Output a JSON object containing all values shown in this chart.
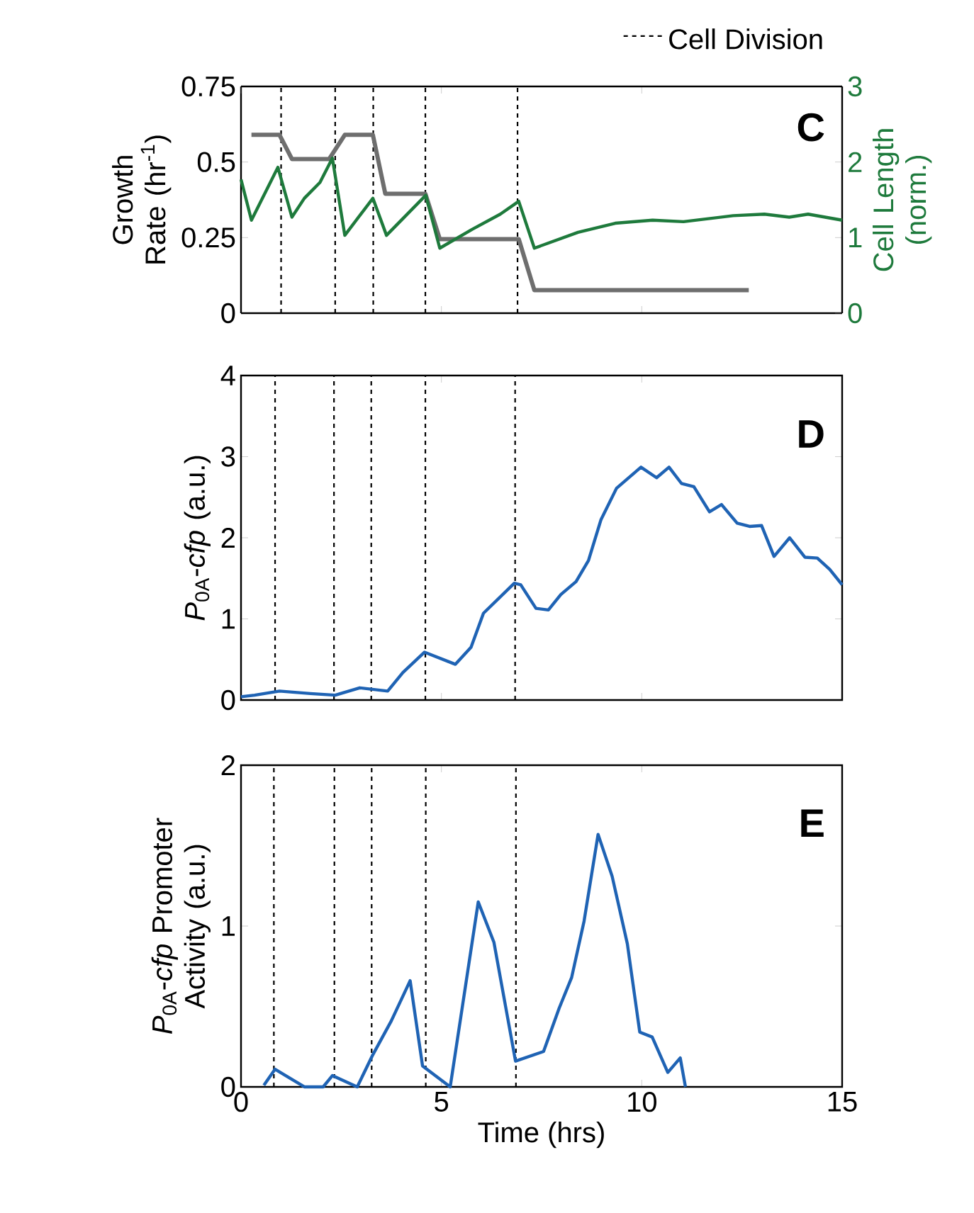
{
  "chart_data": [
    {
      "type": "line",
      "xlim": [
        0,
        15
      ],
      "xticks": [
        0,
        5,
        10,
        15
      ],
      "ylim": [
        0,
        0.75
      ],
      "yticks": [
        0,
        0.25,
        0.5,
        0.75
      ],
      "y2lim": [
        0,
        3
      ],
      "y2ticks": [
        0,
        1,
        2,
        3
      ],
      "tick_labels": "y",
      "ylabel": "Growth Rate (hr$^{-1}$)",
      "y2label": "Cell Length (norm.)",
      "annotations": [
        "C"
      ],
      "series": [
        {
          "color": "#6e6e6e",
          "x": [
            0.26,
            0.96,
            1.27,
            2.2,
            2.59,
            3.29,
            3.6,
            4.6,
            4.96,
            6.93,
            7.32,
            12.67
          ],
          "values": [
            0.59,
            0.59,
            0.51,
            0.51,
            0.59,
            0.59,
            0.395,
            0.395,
            0.245,
            0.245,
            0.076,
            0.076
          ]
        },
        {
          "color": "#1e7a3c",
          "axis": "y2",
          "x": [
            0,
            0.26,
            0.92,
            1.27,
            1.58,
            1.97,
            2.28,
            2.59,
            3.29,
            3.63,
            4.61,
            4.96,
            5.77,
            6.47,
            6.93,
            7.32,
            8.41,
            9.34,
            10.27,
            11.04,
            12.28,
            13.06,
            13.68,
            14.15,
            15
          ],
          "values": [
            1.77,
            1.23,
            1.93,
            1.27,
            1.52,
            1.73,
            2.05,
            1.03,
            1.52,
            1.03,
            1.56,
            0.86,
            1.11,
            1.31,
            1.48,
            0.86,
            1.07,
            1.19,
            1.23,
            1.21,
            1.29,
            1.31,
            1.27,
            1.31,
            1.23
          ]
        }
      ],
      "ref_lines": [
        {
          "axis": "x",
          "value": 1.0,
          "label": "Cell Division",
          "line_style": "dashed"
        },
        {
          "axis": "x",
          "value": 2.35,
          "line_style": "dashed"
        },
        {
          "axis": "x",
          "value": 3.3,
          "line_style": "dashed"
        },
        {
          "axis": "x",
          "value": 4.6,
          "line_style": "dashed"
        },
        {
          "axis": "x",
          "value": 6.9,
          "line_style": "dashed"
        }
      ]
    },
    {
      "type": "line",
      "xlim": [
        0,
        15
      ],
      "xticks": [
        0,
        5,
        10,
        15
      ],
      "ylim": [
        0,
        4
      ],
      "yticks": [
        0,
        1,
        2,
        3,
        4
      ],
      "tick_labels": "y",
      "ylabel": "*P*$_{0A}$-*cfp* (a.u.)",
      "annotations": [
        "D"
      ],
      "series": [
        {
          "color": "#1f63b4",
          "x": [
            0.0,
            0.34,
            0.96,
            1.73,
            2.35,
            2.96,
            3.66,
            4.04,
            4.58,
            5.35,
            5.74,
            6.05,
            6.82,
            6.98,
            7.36,
            7.67,
            7.98,
            8.36,
            8.67,
            8.98,
            9.37,
            9.98,
            10.37,
            10.68,
            10.99,
            11.3,
            11.69,
            11.99,
            12.38,
            12.69,
            12.99,
            13.3,
            13.69,
            14.07,
            14.38,
            14.69,
            15.0
          ],
          "values": [
            0.04,
            0.06,
            0.11,
            0.08,
            0.06,
            0.15,
            0.11,
            0.34,
            0.59,
            0.44,
            0.65,
            1.07,
            1.44,
            1.42,
            1.13,
            1.11,
            1.3,
            1.46,
            1.72,
            2.22,
            2.61,
            2.87,
            2.74,
            2.87,
            2.67,
            2.63,
            2.32,
            2.41,
            2.18,
            2.14,
            2.15,
            1.77,
            2.0,
            1.76,
            1.75,
            1.61,
            1.42
          ]
        }
      ],
      "ref_lines": [
        {
          "axis": "x",
          "value": 0.85,
          "line_style": "dashed"
        },
        {
          "axis": "x",
          "value": 2.32,
          "line_style": "dashed"
        },
        {
          "axis": "x",
          "value": 3.25,
          "line_style": "dashed"
        },
        {
          "axis": "x",
          "value": 4.6,
          "line_style": "dashed"
        },
        {
          "axis": "x",
          "value": 6.84,
          "line_style": "dashed"
        }
      ]
    },
    {
      "type": "line",
      "xlim": [
        0,
        15
      ],
      "xticks": [
        0,
        5,
        10,
        15
      ],
      "ylim": [
        0,
        2
      ],
      "yticks": [
        0,
        1,
        2
      ],
      "xlabel": "Time (hrs)",
      "ylabel": "*P*$_{0A}$-*cfp* Promoter Activity (a.u.)",
      "annotations": [
        "E"
      ],
      "series": [
        {
          "color": "#1f63b4",
          "x": [
            0.57,
            0.85,
            1.58,
            2.05,
            2.28,
            2.9,
            3.29,
            3.75,
            4.22,
            4.53,
            5.22,
            5.92,
            6.31,
            6.85,
            7.55,
            7.94,
            8.25,
            8.56,
            8.91,
            9.26,
            9.64,
            9.95,
            10.26,
            10.65,
            10.96,
            11.09
          ],
          "values": [
            0.01,
            0.11,
            0.0,
            0.0,
            0.07,
            0.0,
            0.2,
            0.41,
            0.66,
            0.13,
            0.0,
            1.15,
            0.9,
            0.16,
            0.22,
            0.49,
            0.68,
            1.03,
            1.57,
            1.31,
            0.89,
            0.34,
            0.31,
            0.09,
            0.18,
            0.0
          ]
        }
      ],
      "ref_lines": [
        {
          "axis": "x",
          "value": 0.82,
          "line_style": "dashed"
        },
        {
          "axis": "x",
          "value": 2.33,
          "line_style": "dashed"
        },
        {
          "axis": "x",
          "value": 3.26,
          "line_style": "dashed"
        },
        {
          "axis": "x",
          "value": 4.61,
          "line_style": "dashed"
        },
        {
          "axis": "x",
          "value": 6.86,
          "line_style": "dashed"
        }
      ]
    }
  ]
}
